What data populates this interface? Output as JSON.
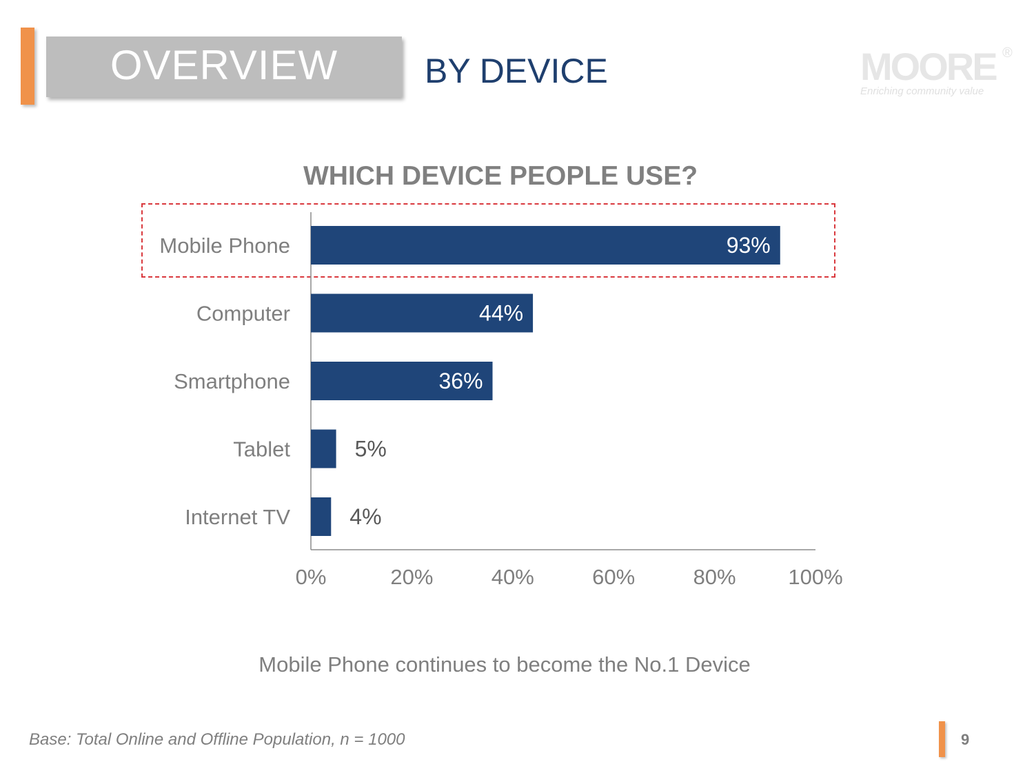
{
  "header": {
    "section": "OVERVIEW",
    "subtitle": "BY DEVICE"
  },
  "logo": {
    "wordmark": "MOORE",
    "registered": "®",
    "tagline": "Enriching community value"
  },
  "colors": {
    "bar": "#1f4579",
    "accent": "#f0924a",
    "highlight": "#d9383d",
    "text_gray": "#7f7f7f",
    "title_blue": "#1f3f6e"
  },
  "chart_data": {
    "type": "bar",
    "orientation": "horizontal",
    "title": "WHICH DEVICE PEOPLE USE?",
    "categories": [
      "Mobile Phone",
      "Computer",
      "Smartphone",
      "Tablet",
      "Internet TV"
    ],
    "values": [
      93,
      44,
      36,
      5,
      4
    ],
    "value_labels": [
      "93%",
      "44%",
      "36%",
      "5%",
      "4%"
    ],
    "xticks": [
      "0%",
      "20%",
      "40%",
      "60%",
      "80%",
      "100%"
    ],
    "xlim": [
      0,
      100
    ],
    "highlighted_category": "Mobile Phone",
    "grid": false
  },
  "caption": "Mobile Phone continues to become the No.1 Device",
  "footnote": "Base: Total Online and Offline Population, n = 1000",
  "page_number": "9"
}
